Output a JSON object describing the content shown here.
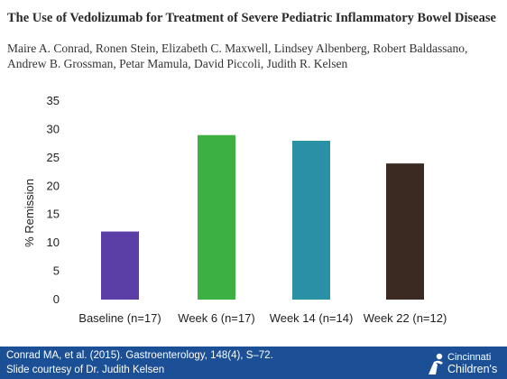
{
  "slide": {
    "title": "The Use of Vedolizumab for Treatment of Severe Pediatric Inflammatory Bowel Disease",
    "authors": "Maire A. Conrad, Ronen Stein, Elizabeth C. Maxwell, Lindsey Albenberg, Robert Baldassano, Andrew B. Grossman, Petar Mamula, David Piccoli, Judith R. Kelsen"
  },
  "footer": {
    "citation": "Conrad MA, et al. (2015). Gastroenterology, 148(4), S–72.",
    "courtesy": "Slide courtesy of Dr. Judith Kelsen",
    "logo_line1": "Cincinnati",
    "logo_line2": "Children's",
    "background_color": "#1b4f96"
  },
  "chart_data": {
    "type": "bar",
    "categories": [
      "Baseline (n=17)",
      "Week 6 (n=17)",
      "Week 14 (n=14)",
      "Week 22 (n=12)"
    ],
    "values": [
      12,
      29,
      28,
      24
    ],
    "colors": [
      "#5b3fa6",
      "#3cb043",
      "#2a90a6",
      "#3a2a22"
    ],
    "ylabel": "% Remission",
    "xlabel": "",
    "ylim": [
      0,
      35
    ],
    "yticks": [
      0,
      5,
      10,
      15,
      20,
      25,
      30,
      35
    ],
    "grid": false,
    "legend": "none"
  }
}
